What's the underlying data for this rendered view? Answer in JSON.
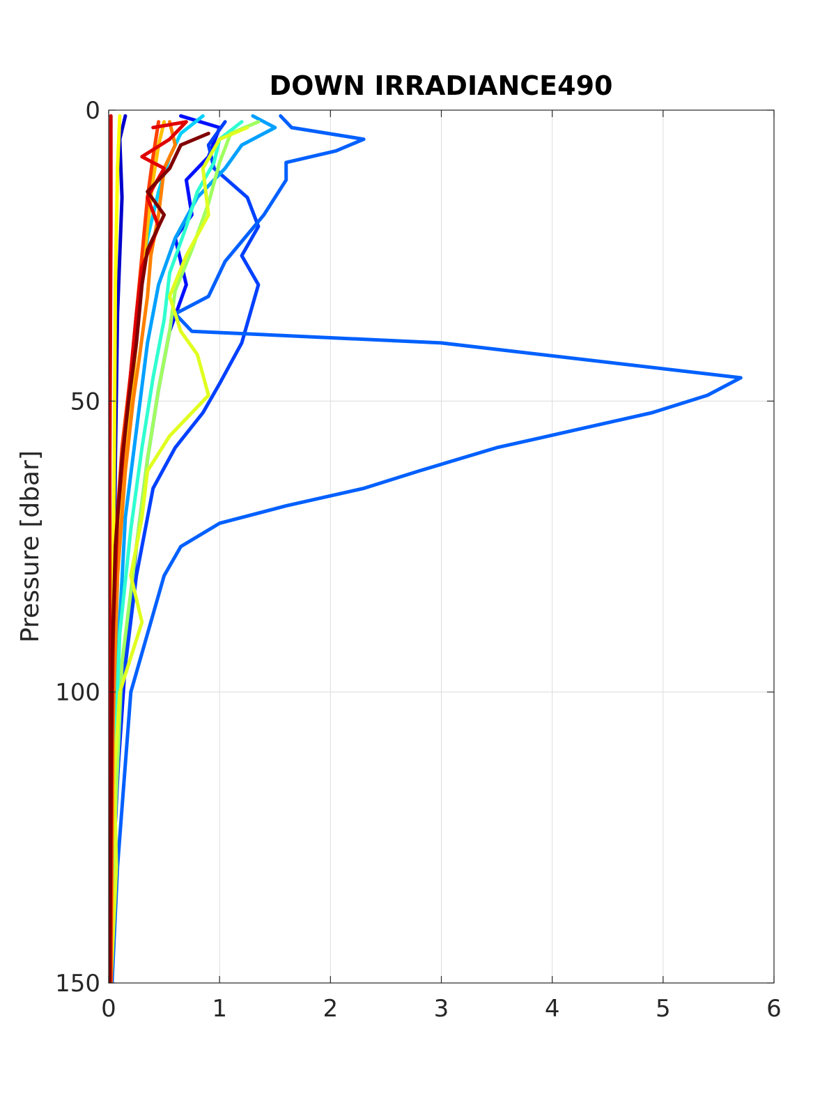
{
  "chart_data": {
    "type": "line",
    "title": "DOWN IRRADIANCE490",
    "xlabel": "",
    "ylabel": "Pressure [dbar]",
    "xlim": [
      0,
      6
    ],
    "ylim": [
      0,
      150
    ],
    "y_reversed": true,
    "xticks": [
      "0",
      "1",
      "2",
      "3",
      "4",
      "5",
      "6"
    ],
    "yticks": [
      "0",
      "50",
      "100",
      "150"
    ],
    "grid": true,
    "legend": "none",
    "series": [
      {
        "color": "#0000cc",
        "points": [
          [
            0.15,
            1
          ],
          [
            0.1,
            5
          ],
          [
            0.12,
            15
          ],
          [
            0.08,
            35
          ],
          [
            0.06,
            60
          ],
          [
            0.04,
            90
          ],
          [
            0.02,
            120
          ],
          [
            0.01,
            150
          ]
        ]
      },
      {
        "color": "#0010ff",
        "points": [
          [
            0.65,
            1
          ],
          [
            1.0,
            3
          ],
          [
            0.9,
            8
          ],
          [
            0.7,
            12
          ],
          [
            0.75,
            18
          ],
          [
            0.6,
            22
          ],
          [
            0.7,
            30
          ],
          [
            0.55,
            38
          ],
          [
            0.45,
            48
          ],
          [
            0.35,
            60
          ],
          [
            0.25,
            75
          ],
          [
            0.15,
            95
          ],
          [
            0.06,
            120
          ],
          [
            0.02,
            150
          ]
        ]
      },
      {
        "color": "#0040ff",
        "points": [
          [
            1.05,
            2
          ],
          [
            0.9,
            6
          ],
          [
            0.95,
            10
          ],
          [
            1.25,
            15
          ],
          [
            1.35,
            20
          ],
          [
            1.2,
            25
          ],
          [
            1.35,
            30
          ],
          [
            1.2,
            40
          ],
          [
            1.0,
            47
          ],
          [
            0.85,
            52
          ],
          [
            0.6,
            58
          ],
          [
            0.4,
            65
          ],
          [
            0.25,
            80
          ],
          [
            0.12,
            100
          ],
          [
            0.04,
            130
          ],
          [
            0.02,
            150
          ]
        ]
      },
      {
        "color": "#0060ff",
        "points": [
          [
            1.55,
            1
          ],
          [
            1.65,
            3
          ],
          [
            2.3,
            5
          ],
          [
            2.05,
            7
          ],
          [
            1.6,
            9
          ],
          [
            1.6,
            12
          ],
          [
            1.4,
            18
          ],
          [
            1.05,
            26
          ],
          [
            0.9,
            32
          ],
          [
            0.6,
            35
          ],
          [
            0.75,
            38
          ],
          [
            3.0,
            40
          ],
          [
            5.7,
            46
          ],
          [
            5.4,
            49
          ],
          [
            4.9,
            52
          ],
          [
            4.2,
            55
          ],
          [
            3.5,
            58
          ],
          [
            2.8,
            62
          ],
          [
            2.3,
            65
          ],
          [
            1.6,
            68
          ],
          [
            1.0,
            71
          ],
          [
            0.65,
            75
          ],
          [
            0.5,
            80
          ],
          [
            0.35,
            90
          ],
          [
            0.2,
            100
          ],
          [
            0.08,
            130
          ],
          [
            0.03,
            150
          ]
        ]
      },
      {
        "color": "#00a0ff",
        "points": [
          [
            1.3,
            1
          ],
          [
            1.5,
            3
          ],
          [
            1.2,
            6
          ],
          [
            1.05,
            10
          ],
          [
            0.8,
            15
          ],
          [
            0.6,
            22
          ],
          [
            0.45,
            30
          ],
          [
            0.35,
            40
          ],
          [
            0.25,
            55
          ],
          [
            0.15,
            70
          ],
          [
            0.08,
            95
          ],
          [
            0.03,
            130
          ],
          [
            0.02,
            150
          ]
        ]
      },
      {
        "color": "#00d0ff",
        "points": [
          [
            0.85,
            1
          ],
          [
            0.65,
            4
          ],
          [
            0.55,
            8
          ],
          [
            0.45,
            14
          ],
          [
            0.35,
            22
          ],
          [
            0.28,
            32
          ],
          [
            0.2,
            45
          ],
          [
            0.14,
            60
          ],
          [
            0.08,
            80
          ],
          [
            0.04,
            110
          ],
          [
            0.02,
            150
          ]
        ]
      },
      {
        "color": "#30ffd0",
        "points": [
          [
            1.2,
            2
          ],
          [
            1.0,
            5
          ],
          [
            0.95,
            9
          ],
          [
            0.8,
            14
          ],
          [
            0.7,
            20
          ],
          [
            0.55,
            28
          ],
          [
            0.5,
            36
          ],
          [
            0.4,
            46
          ],
          [
            0.3,
            58
          ],
          [
            0.2,
            72
          ],
          [
            0.1,
            90
          ],
          [
            0.04,
            120
          ],
          [
            0.02,
            150
          ]
        ]
      },
      {
        "color": "#a0ff60",
        "points": [
          [
            1.35,
            2
          ],
          [
            1.1,
            4
          ],
          [
            1.0,
            9
          ],
          [
            0.9,
            16
          ],
          [
            0.75,
            24
          ],
          [
            0.6,
            31
          ],
          [
            0.55,
            38
          ],
          [
            0.45,
            48
          ],
          [
            0.35,
            60
          ],
          [
            0.25,
            75
          ],
          [
            0.12,
            95
          ],
          [
            0.05,
            125
          ],
          [
            0.02,
            150
          ]
        ]
      },
      {
        "color": "#e0ff20",
        "points": [
          [
            1.25,
            3
          ],
          [
            1.0,
            5
          ],
          [
            0.85,
            10
          ],
          [
            0.9,
            18
          ],
          [
            0.7,
            25
          ],
          [
            0.55,
            32
          ],
          [
            0.65,
            38
          ],
          [
            0.8,
            42
          ],
          [
            0.9,
            49
          ],
          [
            0.55,
            56
          ],
          [
            0.35,
            62
          ],
          [
            0.3,
            70
          ],
          [
            0.2,
            80
          ],
          [
            0.3,
            88
          ],
          [
            0.1,
            100
          ],
          [
            0.05,
            115
          ],
          [
            0.07,
            130
          ],
          [
            0.02,
            150
          ]
        ]
      },
      {
        "color": "#ffff00",
        "points": [
          [
            0.1,
            1
          ],
          [
            0.08,
            10
          ],
          [
            0.06,
            30
          ],
          [
            0.05,
            60
          ],
          [
            0.03,
            100
          ],
          [
            0.02,
            150
          ]
        ]
      },
      {
        "color": "#ffc000",
        "points": [
          [
            0.5,
            2
          ],
          [
            0.45,
            6
          ],
          [
            0.4,
            12
          ],
          [
            0.35,
            20
          ],
          [
            0.3,
            30
          ],
          [
            0.25,
            40
          ],
          [
            0.2,
            50
          ],
          [
            0.12,
            65
          ],
          [
            0.06,
            85
          ],
          [
            0.03,
            110
          ],
          [
            0.02,
            150
          ]
        ]
      },
      {
        "color": "#ff8000",
        "points": [
          [
            0.55,
            2
          ],
          [
            0.6,
            6
          ],
          [
            0.5,
            10
          ],
          [
            0.45,
            18
          ],
          [
            0.38,
            25
          ],
          [
            0.35,
            32
          ],
          [
            0.28,
            42
          ],
          [
            0.22,
            50
          ],
          [
            0.15,
            62
          ],
          [
            0.08,
            80
          ],
          [
            0.04,
            105
          ],
          [
            0.02,
            150
          ]
        ]
      },
      {
        "color": "#ff4000",
        "points": [
          [
            0.45,
            2
          ],
          [
            0.4,
            8
          ],
          [
            0.35,
            15
          ],
          [
            0.3,
            25
          ],
          [
            0.25,
            35
          ],
          [
            0.2,
            45
          ],
          [
            0.12,
            58
          ],
          [
            0.06,
            75
          ],
          [
            0.03,
            100
          ],
          [
            0.02,
            150
          ]
        ]
      },
      {
        "color": "#e00000",
        "points": [
          [
            0.4,
            3
          ],
          [
            0.7,
            2
          ],
          [
            0.55,
            5
          ],
          [
            0.3,
            8
          ],
          [
            0.5,
            10
          ],
          [
            0.35,
            15
          ],
          [
            0.45,
            20
          ],
          [
            0.3,
            27
          ],
          [
            0.25,
            35
          ],
          [
            0.2,
            45
          ],
          [
            0.15,
            55
          ],
          [
            0.08,
            70
          ],
          [
            0.04,
            90
          ],
          [
            0.02,
            120
          ],
          [
            0.01,
            150
          ]
        ]
      },
      {
        "color": "#cc0000",
        "points": [
          [
            0.02,
            1
          ],
          [
            0.02,
            20
          ],
          [
            0.01,
            60
          ],
          [
            0.01,
            100
          ],
          [
            0.005,
            150
          ]
        ]
      },
      {
        "color": "#800000",
        "points": [
          [
            0.9,
            4
          ],
          [
            0.65,
            6
          ],
          [
            0.55,
            10
          ],
          [
            0.35,
            14
          ],
          [
            0.5,
            18
          ],
          [
            0.35,
            24
          ],
          [
            0.3,
            30
          ],
          [
            0.25,
            40
          ],
          [
            0.18,
            50
          ],
          [
            0.12,
            60
          ],
          [
            0.06,
            75
          ],
          [
            0.03,
            95
          ],
          [
            0.01,
            150
          ]
        ]
      }
    ]
  }
}
